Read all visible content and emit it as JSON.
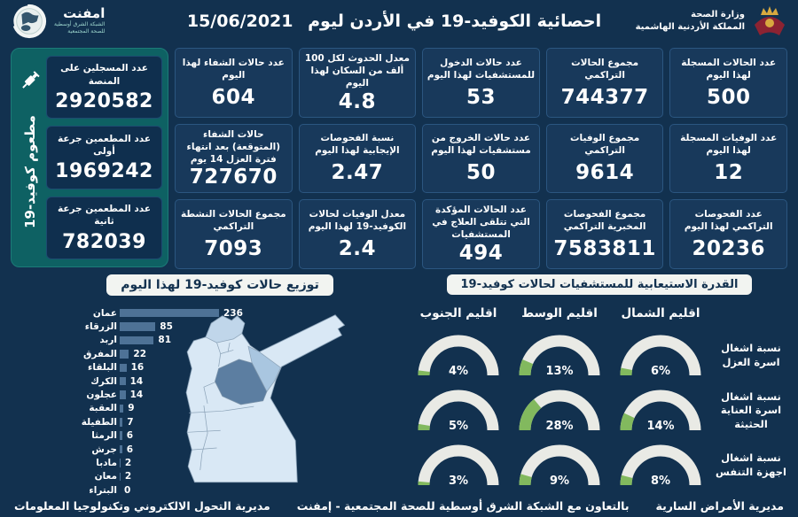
{
  "header": {
    "title": "احصائية الكوفيد-19 في الأردن ليوم",
    "date": "15/06/2021",
    "emphnet": {
      "name": "امفنت",
      "sub_line1": "الشبكة الشرق أوسطية",
      "sub_line2": "للصحة المجتمعية"
    },
    "moh": {
      "line1": "وزارة الصحة",
      "line2": "المملكة الأردنية الهاشمية"
    }
  },
  "stats": {
    "boxes": [
      {
        "label": "عدد الحالات المسجلة لهذا اليوم",
        "value": "500"
      },
      {
        "label": "مجموع الحالات التراكمي",
        "value": "744377"
      },
      {
        "label": "عدد حالات الدخول للمستشفيات لهذا اليوم",
        "value": "53"
      },
      {
        "label": "معدل الحدوث لكل 100 ألف من السكان لهذا اليوم",
        "value": "4.8"
      },
      {
        "label": "عدد حالات الشفاء لهذا اليوم",
        "value": "604"
      },
      {
        "label": "عدد الوفيات المسجلة لهذا اليوم",
        "value": "12"
      },
      {
        "label": "مجموع الوفيات التراكمي",
        "value": "9614"
      },
      {
        "label": "عدد حالات الخروج من مستشفيات لهذا اليوم",
        "value": "50"
      },
      {
        "label": "نسبة الفحوصات الإيجابية لهذا اليوم",
        "value": "2.47"
      },
      {
        "label": "حالات الشفاء (المتوقعة) بعد انتهاء فترة العزل 14 يوم",
        "value": "727670"
      },
      {
        "label": "عدد الفحوصات التراكمي لهذا اليوم",
        "value": "20236"
      },
      {
        "label": "مجموع الفحوصات المخبرية التراكمي",
        "value": "7583811"
      },
      {
        "label": "عدد الحالات المؤكدة التي تتلقى العلاج في المستشفيات",
        "value": "494"
      },
      {
        "label": "معدل الوفيات لحالات الكوفيد-19 لهذا اليوم",
        "value": "2.4"
      },
      {
        "label": "مجموع الحالات النشطة التراكمي",
        "value": "7093"
      }
    ]
  },
  "vaccine": {
    "side_label": "مطعوم كوفيد-19",
    "boxes": [
      {
        "label": "عدد المسجلين على المنصة",
        "value": "2920582"
      },
      {
        "label": "عدد المطعمين جرعة أولى",
        "value": "1969242"
      },
      {
        "label": "عدد المطعمين جرعة ثانية",
        "value": "782039"
      }
    ]
  },
  "chart_data": [
    {
      "type": "bar",
      "orientation": "horizontal",
      "title": "توزيع حالات كوفيد-19 لهذا اليوم",
      "categories": [
        "عمان",
        "الزرقاء",
        "اربد",
        "المفرق",
        "البلقاء",
        "الكرك",
        "عجلون",
        "العقبة",
        "الطفيلة",
        "الرمثا",
        "جرش",
        "مادبا",
        "معان",
        "البتراء"
      ],
      "values": [
        236,
        85,
        81,
        22,
        16,
        14,
        14,
        9,
        7,
        6,
        6,
        2,
        2,
        0
      ],
      "xlim": [
        0,
        236
      ],
      "bar_color": "#4e7296",
      "legend_position": "none",
      "grid": false
    },
    {
      "type": "gauge",
      "title": "القدرة الاستيعابية للمستشفيات لحالات كوفيد-19",
      "regions": [
        "اقليم الشمال",
        "اقليم الوسط",
        "اقليم الجنوب"
      ],
      "series": [
        {
          "name": "نسبة اشغال اسرة العزل",
          "values": [
            6,
            13,
            4
          ]
        },
        {
          "name": "نسبة اشغال اسرة العناية الحثيثة",
          "values": [
            14,
            28,
            5
          ]
        },
        {
          "name": "نسبة اشغال اجهزة التنفس",
          "values": [
            8,
            9,
            3
          ]
        }
      ],
      "unit": "%",
      "range": [
        0,
        100
      ]
    }
  ],
  "footer": {
    "items": [
      "مديرية الأمراض السارية",
      "بالتعاون مع الشبكة الشرق أوسطية للصحة المجتمعية - إمفنت",
      "مديرية التحول الالكتروني وتكنولوجيا المعلومات"
    ]
  },
  "colors": {
    "background": "#12314f",
    "box_bg": "#18395b",
    "teal_panel": "#0e6163",
    "bar_blue": "#4e7296",
    "gauge_track": "#e9eae5",
    "gauge_fill": "#82b95e",
    "pill_bg": "#f2f4f1",
    "map_light": "#d9e8f5",
    "map_mid": "#a9c6e0",
    "map_irbid": "#c0d6ea",
    "map_amman": "#5c7ea1",
    "map_stroke": "#8ca3b8"
  }
}
